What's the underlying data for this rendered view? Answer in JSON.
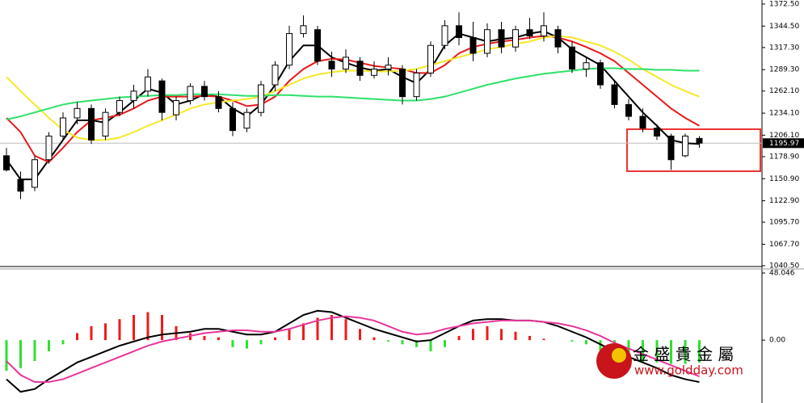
{
  "chart_data": [
    {
      "type": "candlestick",
      "open": [
        1180,
        1150,
        1140,
        1175,
        1205,
        1228,
        1240,
        1205,
        1235,
        1250,
        1262,
        1275,
        1232,
        1250,
        1268,
        1255,
        1240,
        1215,
        1235,
        1270,
        1295,
        1335,
        1340,
        1300,
        1290,
        1300,
        1282,
        1290,
        1290,
        1255,
        1285,
        1320,
        1345,
        1330,
        1310,
        1340,
        1318,
        1340,
        1332,
        1340,
        1318,
        1290,
        1298,
        1270,
        1245,
        1230,
        1215,
        1205,
        1180,
        1202
      ],
      "high": [
        1190,
        1160,
        1180,
        1210,
        1235,
        1248,
        1245,
        1240,
        1255,
        1270,
        1290,
        1278,
        1255,
        1272,
        1275,
        1262,
        1248,
        1240,
        1275,
        1300,
        1345,
        1358,
        1345,
        1312,
        1315,
        1305,
        1300,
        1305,
        1295,
        1290,
        1325,
        1352,
        1362,
        1350,
        1348,
        1350,
        1345,
        1355,
        1362,
        1345,
        1325,
        1305,
        1302,
        1275,
        1252,
        1240,
        1220,
        1208,
        1208,
        1205
      ],
      "low": [
        1160,
        1125,
        1135,
        1170,
        1200,
        1220,
        1195,
        1200,
        1230,
        1240,
        1255,
        1225,
        1225,
        1245,
        1250,
        1235,
        1205,
        1210,
        1230,
        1262,
        1290,
        1330,
        1295,
        1280,
        1285,
        1275,
        1278,
        1282,
        1245,
        1250,
        1280,
        1315,
        1320,
        1300,
        1305,
        1310,
        1312,
        1328,
        1325,
        1310,
        1285,
        1280,
        1265,
        1240,
        1225,
        1210,
        1200,
        1162,
        1178,
        1190
      ],
      "close": [
        1162,
        1135,
        1175,
        1205,
        1228,
        1240,
        1200,
        1235,
        1250,
        1262,
        1280,
        1235,
        1250,
        1268,
        1255,
        1240,
        1212,
        1235,
        1270,
        1295,
        1335,
        1345,
        1300,
        1290,
        1305,
        1282,
        1290,
        1295,
        1255,
        1285,
        1320,
        1345,
        1330,
        1310,
        1340,
        1318,
        1340,
        1332,
        1345,
        1318,
        1290,
        1298,
        1270,
        1245,
        1230,
        1215,
        1205,
        1175,
        1205,
        1196
      ],
      "series": [
        {
          "color": "#000000",
          "values": [
            1175,
            1150,
            1150,
            1175,
            1200,
            1225,
            1225,
            1222,
            1235,
            1250,
            1265,
            1260,
            1245,
            1250,
            1258,
            1255,
            1240,
            1230,
            1245,
            1270,
            1300,
            1320,
            1320,
            1305,
            1298,
            1292,
            1288,
            1290,
            1280,
            1272,
            1290,
            1320,
            1335,
            1330,
            1325,
            1328,
            1330,
            1335,
            1338,
            1330,
            1315,
            1305,
            1295,
            1275,
            1255,
            1235,
            1218,
            1200,
            1196,
            1195
          ]
        },
        {
          "color": "#e8191b",
          "values": [
            1228,
            1210,
            1180,
            1172,
            1190,
            1210,
            1225,
            1228,
            1232,
            1240,
            1250,
            1255,
            1255,
            1255,
            1256,
            1255,
            1250,
            1243,
            1245,
            1255,
            1275,
            1290,
            1300,
            1303,
            1302,
            1298,
            1294,
            1292,
            1290,
            1285,
            1285,
            1295,
            1310,
            1318,
            1322,
            1325,
            1327,
            1330,
            1332,
            1330,
            1325,
            1318,
            1310,
            1300,
            1285,
            1270,
            1255,
            1240,
            1228,
            1218
          ]
        },
        {
          "color": "#f5e82a",
          "values": [
            1280,
            1262,
            1245,
            1228,
            1213,
            1203,
            1200,
            1200,
            1203,
            1210,
            1218,
            1225,
            1232,
            1240,
            1245,
            1248,
            1250,
            1252,
            1255,
            1262,
            1270,
            1278,
            1283,
            1286,
            1288,
            1288,
            1287,
            1287,
            1288,
            1290,
            1295,
            1300,
            1305,
            1310,
            1315,
            1318,
            1322,
            1325,
            1330,
            1332,
            1330,
            1325,
            1320,
            1312,
            1302,
            1290,
            1280,
            1270,
            1262,
            1255
          ]
        },
        {
          "color": "#2ee06a",
          "values": [
            1226,
            1230,
            1235,
            1240,
            1245,
            1248,
            1250,
            1252,
            1254,
            1255,
            1256,
            1257,
            1257,
            1258,
            1258,
            1258,
            1257,
            1256,
            1256,
            1257,
            1257,
            1256,
            1255,
            1255,
            1254,
            1253,
            1252,
            1251,
            1250,
            1250,
            1252,
            1255,
            1260,
            1265,
            1270,
            1274,
            1278,
            1281,
            1284,
            1286,
            1288,
            1290,
            1291,
            1291,
            1290,
            1290,
            1289,
            1289,
            1288,
            1288
          ]
        }
      ],
      "last_price": 1195.97,
      "ylim": [
        1040.5,
        1372.5
      ],
      "yticks": [
        {
          "value": 1372.5,
          "label": "1372.50"
        },
        {
          "value": 1344.5,
          "label": "1344.50"
        },
        {
          "value": 1317.3,
          "label": "1317.30"
        },
        {
          "value": 1289.3,
          "label": "1289.30"
        },
        {
          "value": 1262.1,
          "label": "1262.10"
        },
        {
          "value": 1234.1,
          "label": "1234.10"
        },
        {
          "value": 1206.1,
          "label": "1206.10"
        },
        {
          "value": 1178.9,
          "label": "1178.90"
        },
        {
          "value": 1150.9,
          "label": "1150.90"
        },
        {
          "value": 1122.9,
          "label": "1122.90"
        },
        {
          "value": 1095.7,
          "label": "1095.70"
        },
        {
          "value": 1067.7,
          "label": "1067.70"
        },
        {
          "value": 1040.5,
          "label": "1040.50"
        }
      ]
    },
    {
      "type": "macd",
      "values": [
        -22,
        -20,
        -15,
        -8,
        -3,
        5,
        10,
        12,
        15,
        18,
        20,
        18,
        10,
        5,
        3,
        2,
        -5,
        -6,
        -3,
        2,
        8,
        12,
        16,
        18,
        15,
        8,
        2,
        -1,
        -3,
        -5,
        -8,
        -5,
        3,
        8,
        10,
        8,
        6,
        3,
        1,
        0,
        -1,
        -3,
        -8,
        -12,
        -15,
        -16,
        -16,
        -17,
        -17,
        -16
      ],
      "up_color": "#f01a1a",
      "down_color": "#2ee02e",
      "series": [
        {
          "color": "#000000",
          "values": [
            -28,
            -37,
            -35,
            -28,
            -22,
            -16,
            -12,
            -8,
            -4,
            -1,
            2,
            4,
            5,
            6,
            8,
            8,
            6,
            4,
            4,
            6,
            12,
            18,
            21,
            20,
            16,
            12,
            8,
            5,
            2,
            -1,
            0,
            5,
            10,
            14,
            15,
            15,
            14,
            14,
            13,
            10,
            6,
            2,
            -3,
            -8,
            -12,
            -16,
            -20,
            -25,
            -28,
            -30
          ]
        },
        {
          "color": "#e8359a",
          "values": [
            -15,
            -25,
            -30,
            -30,
            -28,
            -24,
            -20,
            -16,
            -12,
            -8,
            -4,
            -1,
            1,
            3,
            5,
            6,
            7,
            7,
            6,
            6,
            8,
            11,
            14,
            16,
            17,
            16,
            14,
            10,
            6,
            4,
            5,
            8,
            10,
            12,
            13,
            14,
            14,
            14,
            13,
            12,
            10,
            7,
            3,
            -2,
            -6,
            -10,
            -14,
            -18,
            -22,
            -26
          ]
        }
      ],
      "ylim": [
        -45,
        48.046
      ],
      "yticks": [
        48.046,
        {
          "value": 0,
          "label": "0.00"
        }
      ],
      "watermark": "金 盛 貴 金 屬",
      "watermark_url": "www.goldday.com"
    }
  ]
}
